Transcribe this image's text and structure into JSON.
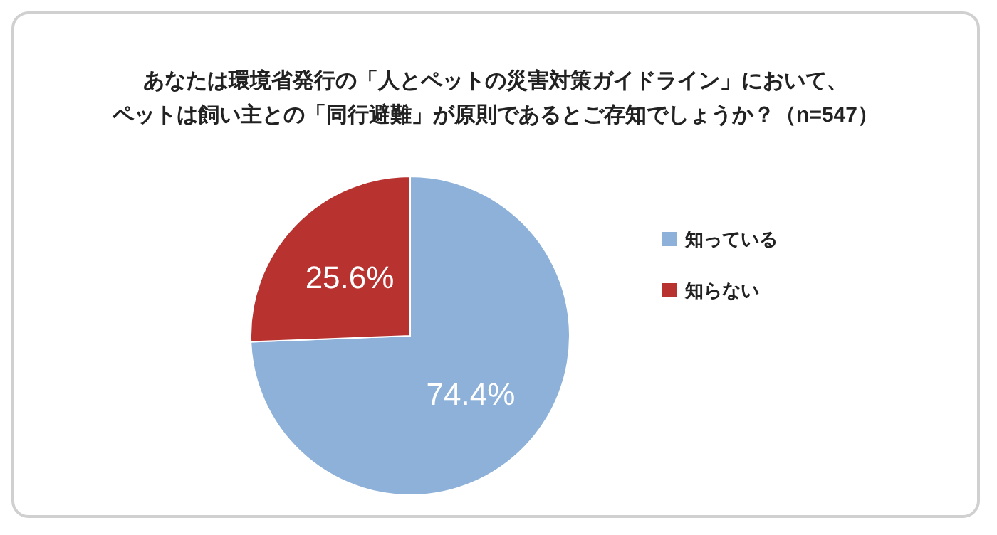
{
  "chart_data": {
    "type": "pie",
    "title": "あなたは環境省発行の「人とペットの災害対策ガイドライン」において、ペットは飼い主との「同行避難」が原則であるとご存知でしょうか？（n=547）",
    "categories": [
      "知っている",
      "知らない"
    ],
    "values": [
      74.4,
      25.6
    ],
    "colors": [
      "#8db1d9",
      "#b83230"
    ],
    "value_labels": [
      "74.4%",
      "25.6%"
    ],
    "legend": "right"
  }
}
